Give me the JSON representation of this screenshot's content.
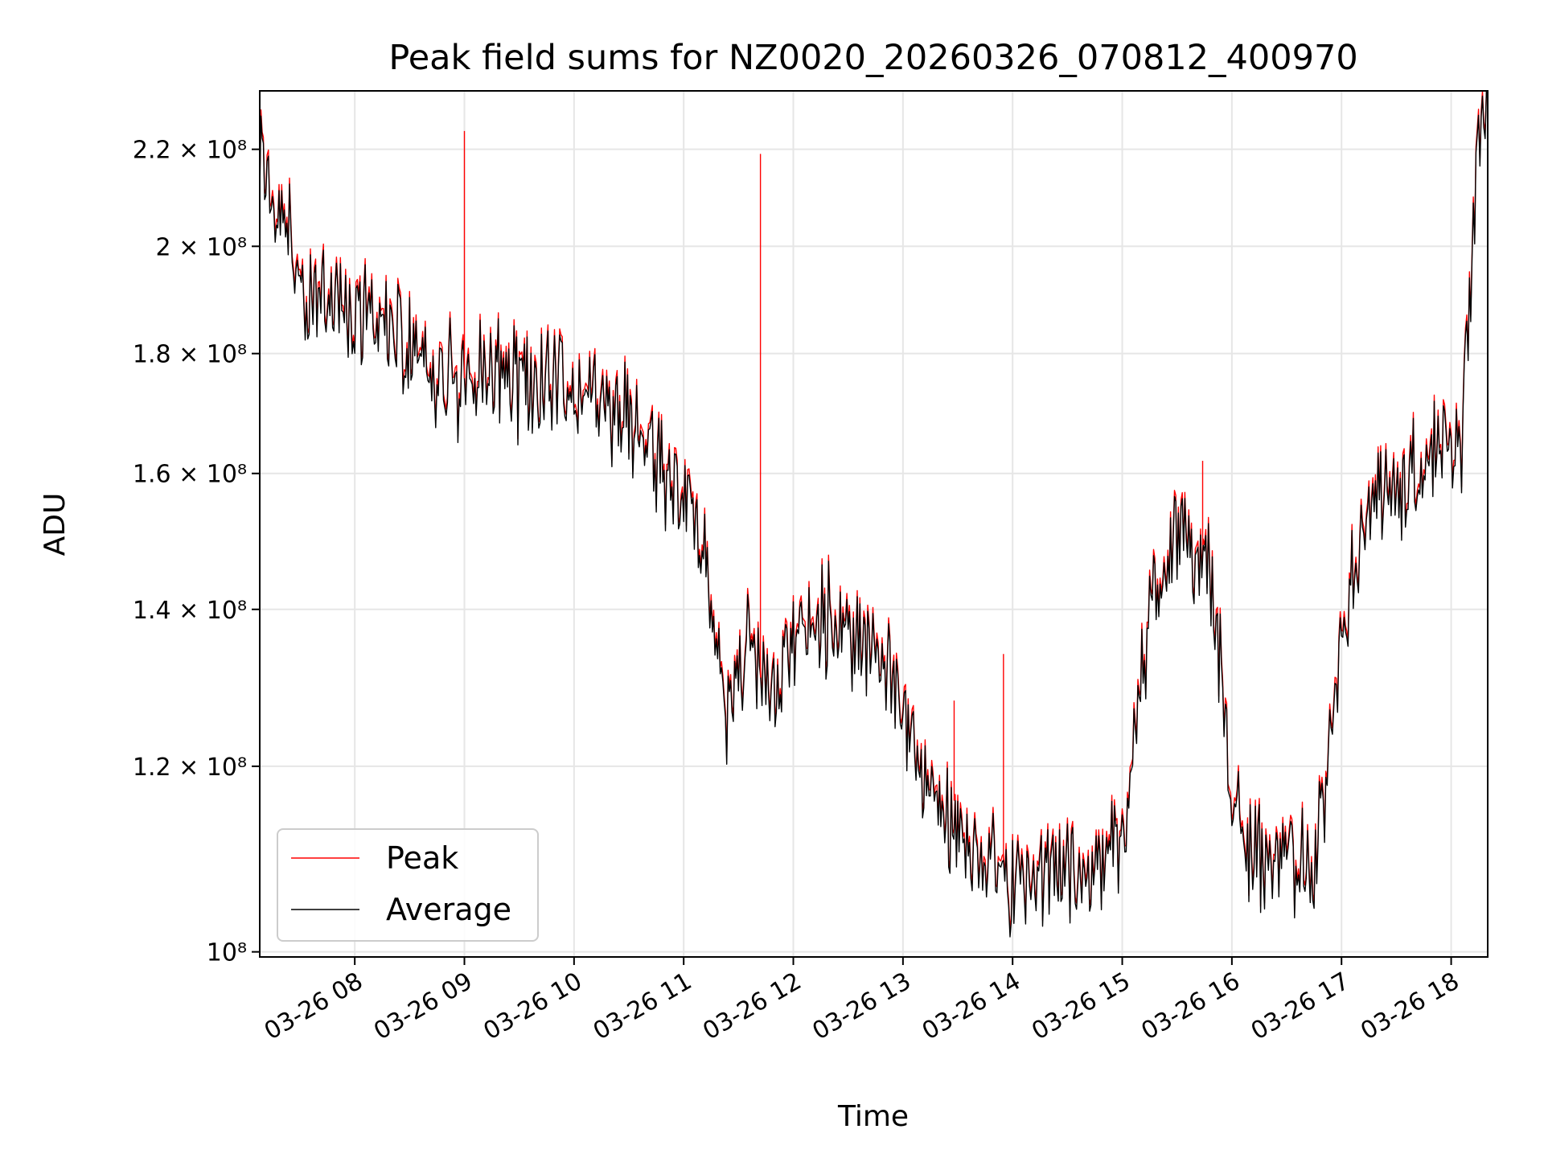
{
  "chart_data": {
    "type": "line",
    "title": "Peak field sums for NZ0020_20260326_070812_400970",
    "xlabel": "Time",
    "ylabel": "ADU",
    "y_scale": "log",
    "ylim": [
      99500000,
      233000000
    ],
    "xlim": [
      "2026-03-26 07:08",
      "2026-03-26 18:20"
    ],
    "grid": true,
    "legend_position": "lower-left",
    "y_ticks": [
      {
        "value": 100000000,
        "label": "10⁸"
      },
      {
        "value": 120000000,
        "label": "1.2 × 10⁸"
      },
      {
        "value": 140000000,
        "label": "1.4 × 10⁸"
      },
      {
        "value": 160000000,
        "label": "1.6 × 10⁸"
      },
      {
        "value": 180000000,
        "label": "1.8 × 10⁸"
      },
      {
        "value": 200000000,
        "label": "2 × 10⁸"
      },
      {
        "value": 220000000,
        "label": "2.2 × 10⁸"
      }
    ],
    "x_ticks": [
      {
        "value": "2026-03-26 08:00",
        "label": "03-26 08"
      },
      {
        "value": "2026-03-26 09:00",
        "label": "03-26 09"
      },
      {
        "value": "2026-03-26 10:00",
        "label": "03-26 10"
      },
      {
        "value": "2026-03-26 11:00",
        "label": "03-26 11"
      },
      {
        "value": "2026-03-26 12:00",
        "label": "03-26 12"
      },
      {
        "value": "2026-03-26 13:00",
        "label": "03-26 13"
      },
      {
        "value": "2026-03-26 14:00",
        "label": "03-26 14"
      },
      {
        "value": "2026-03-26 15:00",
        "label": "03-26 15"
      },
      {
        "value": "2026-03-26 16:00",
        "label": "03-26 16"
      },
      {
        "value": "2026-03-26 17:00",
        "label": "03-26 17"
      },
      {
        "value": "2026-03-26 18:00",
        "label": "03-26 18"
      }
    ],
    "series": [
      {
        "name": "Peak",
        "color": "#ff0000",
        "x": [
          "2026-03-26 07:08",
          "2026-03-26 07:12",
          "2026-03-26 07:15",
          "2026-03-26 07:20",
          "2026-03-26 07:25",
          "2026-03-26 07:30",
          "2026-03-26 07:35",
          "2026-03-26 07:40",
          "2026-03-26 07:45",
          "2026-03-26 07:50",
          "2026-03-26 08:00",
          "2026-03-26 08:10",
          "2026-03-26 08:20",
          "2026-03-26 08:30",
          "2026-03-26 08:40",
          "2026-03-26 08:50",
          "2026-03-26 09:00",
          "2026-03-26 09:10",
          "2026-03-26 09:20",
          "2026-03-26 09:30",
          "2026-03-26 09:40",
          "2026-03-26 09:50",
          "2026-03-26 10:00",
          "2026-03-26 10:10",
          "2026-03-26 10:20",
          "2026-03-26 10:30",
          "2026-03-26 10:40",
          "2026-03-26 10:50",
          "2026-03-26 11:00",
          "2026-03-26 11:08",
          "2026-03-26 11:15",
          "2026-03-26 11:20",
          "2026-03-26 11:25",
          "2026-03-26 11:30",
          "2026-03-26 11:35",
          "2026-03-26 11:40",
          "2026-03-26 11:50",
          "2026-03-26 12:00",
          "2026-03-26 12:10",
          "2026-03-26 12:20",
          "2026-03-26 12:30",
          "2026-03-26 12:40",
          "2026-03-26 12:50",
          "2026-03-26 13:00",
          "2026-03-26 13:10",
          "2026-03-26 13:20",
          "2026-03-26 13:30",
          "2026-03-26 13:40",
          "2026-03-26 13:50",
          "2026-03-26 14:00",
          "2026-03-26 14:10",
          "2026-03-26 14:20",
          "2026-03-26 14:30",
          "2026-03-26 14:40",
          "2026-03-26 14:50",
          "2026-03-26 15:00",
          "2026-03-26 15:10",
          "2026-03-26 15:20",
          "2026-03-26 15:30",
          "2026-03-26 15:40",
          "2026-03-26 15:50",
          "2026-03-26 16:00",
          "2026-03-26 16:10",
          "2026-03-26 16:20",
          "2026-03-26 16:30",
          "2026-03-26 16:40",
          "2026-03-26 16:50",
          "2026-03-26 17:00",
          "2026-03-26 17:10",
          "2026-03-26 17:20",
          "2026-03-26 17:30",
          "2026-03-26 17:40",
          "2026-03-26 17:50",
          "2026-03-26 18:00",
          "2026-03-26 18:05",
          "2026-03-26 18:10",
          "2026-03-26 18:15",
          "2026-03-26 18:20"
        ],
        "y": [
          219000000,
          217000000,
          213000000,
          210000000,
          205000000,
          190000000,
          188000000,
          190000000,
          193000000,
          191000000,
          188000000,
          186000000,
          184000000,
          182000000,
          179000000,
          177000000,
          176000000,
          177000000,
          178000000,
          176000000,
          176000000,
          175000000,
          174000000,
          173000000,
          172000000,
          169000000,
          164000000,
          161000000,
          158000000,
          152000000,
          143000000,
          132000000,
          128000000,
          131000000,
          137000000,
          134000000,
          132000000,
          137000000,
          140000000,
          139000000,
          138000000,
          135000000,
          132000000,
          129000000,
          123000000,
          117000000,
          113000000,
          111000000,
          109000000,
          108000000,
          108000000,
          109000000,
          109000000,
          109000000,
          110000000,
          112000000,
          132000000,
          146000000,
          151000000,
          149000000,
          143000000,
          117000000,
          112000000,
          110000000,
          110000000,
          111000000,
          114000000,
          137000000,
          150000000,
          156000000,
          158000000,
          161000000,
          163000000,
          165000000,
          162000000,
          190000000,
          222000000,
          232000000
        ]
      },
      {
        "name": "Average",
        "color": "#000000",
        "x": [
          "2026-03-26 07:08",
          "2026-03-26 07:12",
          "2026-03-26 07:15",
          "2026-03-26 07:20",
          "2026-03-26 07:25",
          "2026-03-26 07:30",
          "2026-03-26 07:35",
          "2026-03-26 07:40",
          "2026-03-26 07:45",
          "2026-03-26 07:50",
          "2026-03-26 08:00",
          "2026-03-26 08:10",
          "2026-03-26 08:20",
          "2026-03-26 08:30",
          "2026-03-26 08:40",
          "2026-03-26 08:50",
          "2026-03-26 09:00",
          "2026-03-26 09:10",
          "2026-03-26 09:20",
          "2026-03-26 09:30",
          "2026-03-26 09:40",
          "2026-03-26 09:50",
          "2026-03-26 10:00",
          "2026-03-26 10:10",
          "2026-03-26 10:20",
          "2026-03-26 10:30",
          "2026-03-26 10:40",
          "2026-03-26 10:50",
          "2026-03-26 11:00",
          "2026-03-26 11:08",
          "2026-03-26 11:15",
          "2026-03-26 11:20",
          "2026-03-26 11:25",
          "2026-03-26 11:30",
          "2026-03-26 11:35",
          "2026-03-26 11:40",
          "2026-03-26 11:50",
          "2026-03-26 12:00",
          "2026-03-26 12:10",
          "2026-03-26 12:20",
          "2026-03-26 12:30",
          "2026-03-26 12:40",
          "2026-03-26 12:50",
          "2026-03-26 13:00",
          "2026-03-26 13:10",
          "2026-03-26 13:20",
          "2026-03-26 13:30",
          "2026-03-26 13:40",
          "2026-03-26 13:50",
          "2026-03-26 14:00",
          "2026-03-26 14:10",
          "2026-03-26 14:20",
          "2026-03-26 14:30",
          "2026-03-26 14:40",
          "2026-03-26 14:50",
          "2026-03-26 15:00",
          "2026-03-26 15:10",
          "2026-03-26 15:20",
          "2026-03-26 15:30",
          "2026-03-26 15:40",
          "2026-03-26 15:50",
          "2026-03-26 16:00",
          "2026-03-26 16:10",
          "2026-03-26 16:20",
          "2026-03-26 16:30",
          "2026-03-26 16:40",
          "2026-03-26 16:50",
          "2026-03-26 17:00",
          "2026-03-26 17:10",
          "2026-03-26 17:20",
          "2026-03-26 17:30",
          "2026-03-26 17:40",
          "2026-03-26 17:50",
          "2026-03-26 18:00",
          "2026-03-26 18:05",
          "2026-03-26 18:10",
          "2026-03-26 18:15",
          "2026-03-26 18:20"
        ],
        "y": [
          218000000,
          216000000,
          212000000,
          209000000,
          204000000,
          189000000,
          187000000,
          189000000,
          192000000,
          190000000,
          187000000,
          185000000,
          183000000,
          181000000,
          178000000,
          176000000,
          175000000,
          176000000,
          177000000,
          175000000,
          175000000,
          174000000,
          173000000,
          172000000,
          171000000,
          168000000,
          163000000,
          160000000,
          157000000,
          151000000,
          142000000,
          131000000,
          127000000,
          130000000,
          136000000,
          133000000,
          131000000,
          136000000,
          139000000,
          138000000,
          137000000,
          134000000,
          131000000,
          128000000,
          122000000,
          116000000,
          112000000,
          110000000,
          108000000,
          107000000,
          107000000,
          108000000,
          108000000,
          108000000,
          109000000,
          111000000,
          131000000,
          145000000,
          150000000,
          148000000,
          142000000,
          116000000,
          111000000,
          109000000,
          109000000,
          110000000,
          113000000,
          136000000,
          149000000,
          155000000,
          157000000,
          160000000,
          162000000,
          164000000,
          161000000,
          189000000,
          221000000,
          231000000
        ]
      }
    ],
    "spikes": [
      {
        "series": "Peak",
        "x": "2026-03-26 09:00",
        "y": 224000000
      },
      {
        "series": "Peak",
        "x": "2026-03-26 11:42",
        "y": 219000000
      },
      {
        "series": "Peak",
        "x": "2026-03-26 13:28",
        "y": 128000000
      },
      {
        "series": "Peak",
        "x": "2026-03-26 13:55",
        "y": 134000000
      },
      {
        "series": "Peak",
        "x": "2026-03-26 15:44",
        "y": 162000000
      }
    ]
  }
}
